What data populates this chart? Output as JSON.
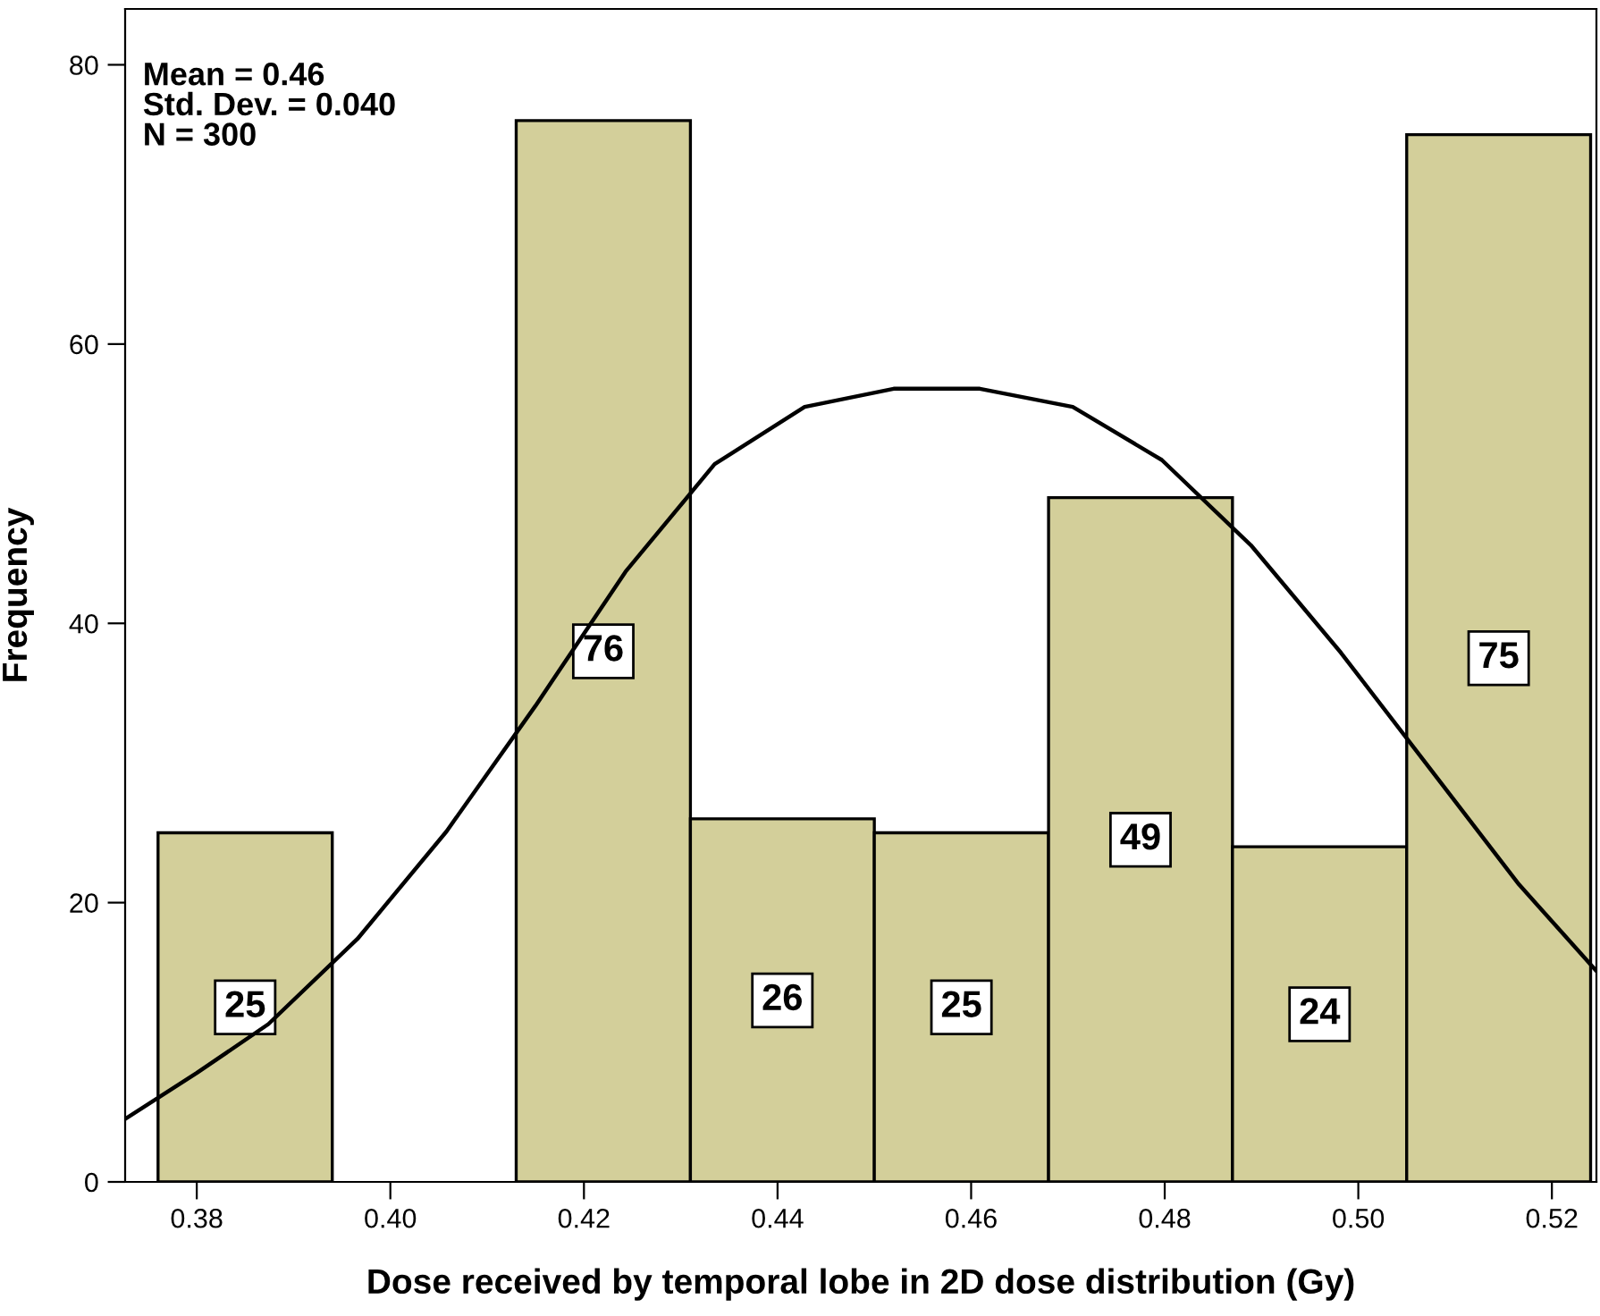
{
  "chart_data": {
    "type": "histogram",
    "xlabel": "Dose received by temporal lobe in 2D dose distribution (Gy)",
    "ylabel": "Frequency",
    "bins": [
      0.376,
      0.394,
      0.413,
      0.431,
      0.45,
      0.468,
      0.487,
      0.505,
      0.524
    ],
    "values": [
      25,
      0,
      76,
      26,
      25,
      49,
      24,
      75
    ],
    "value_labels": [
      "25",
      null,
      "76",
      "26",
      "25",
      "49",
      "24",
      "75"
    ],
    "color": "#d3cf9a",
    "series": [
      {
        "type": "line",
        "color": "#000000",
        "x": [
          0.3726,
          0.38,
          0.3874,
          0.3966,
          0.4058,
          0.415,
          0.4243,
          0.4335,
          0.4428,
          0.452,
          0.4609,
          0.4705,
          0.4797,
          0.4889,
          0.4982,
          0.5074,
          0.5166,
          0.5246
        ],
        "values": [
          4.5,
          7.8,
          11.3,
          17.4,
          25.1,
          34.1,
          43.7,
          51.4,
          55.5,
          56.8,
          56.8,
          55.5,
          51.7,
          45.6,
          37.9,
          29.6,
          21.3,
          15.1
        ]
      }
    ],
    "annotations": [
      "Mean = 0.46\nStd. Dev. = 0.040\nN = 300"
    ],
    "xlim": [
      0.3726,
      0.5246
    ],
    "xticks": [
      {
        "value": 0.38,
        "label": "0.38"
      },
      {
        "value": 0.4,
        "label": "0.40"
      },
      {
        "value": 0.42,
        "label": "0.42"
      },
      {
        "value": 0.44,
        "label": "0.44"
      },
      {
        "value": 0.46,
        "label": "0.46"
      },
      {
        "value": 0.48,
        "label": "0.48"
      },
      {
        "value": 0.5,
        "label": "0.50"
      },
      {
        "value": 0.52,
        "label": "0.52"
      }
    ],
    "ylim": [
      0,
      84
    ],
    "yticks": [
      0,
      20,
      40,
      60,
      80
    ],
    "grid": false,
    "legend": false
  }
}
